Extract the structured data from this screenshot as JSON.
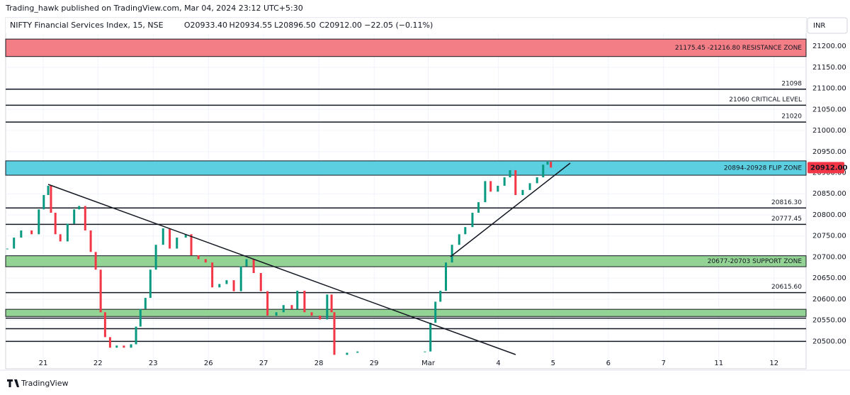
{
  "header": {
    "publisher": "Trading_hawk published on TradingView.com, Mar 04, 2024 23:12 UTC+5:30"
  },
  "footer": {
    "brand": "TradingView"
  },
  "chart_data": {
    "type": "candlestick",
    "symbol": "NIFTY Financial Services Index, 15, NSE",
    "ohlc": [
      "O20933.40",
      "H20934.55",
      "L20896.50",
      "C20912.00",
      "−22.05 (−0.11%)"
    ],
    "currency": "INR",
    "last_price_label": "20912.00",
    "up_color": "#089981",
    "down_color": "#f23645",
    "x": [
      -0.65,
      -0.53,
      -0.4,
      -0.21,
      -0.08,
      0.01,
      0.09,
      0.14,
      0.22,
      0.31,
      0.44,
      0.56,
      0.65,
      0.76,
      0.86,
      0.95,
      1.04,
      1.12,
      1.21,
      1.33,
      1.46,
      1.59,
      1.68,
      1.76,
      1.85,
      1.94,
      2.04,
      2.17,
      2.29,
      2.42,
      2.58,
      2.68,
      2.81,
      2.94,
      3.06,
      3.19,
      3.32,
      3.45,
      3.58,
      3.68,
      3.81,
      3.94,
      4.06,
      4.22,
      4.35,
      4.5,
      4.6,
      4.73,
      4.86,
      5.01,
      5.14,
      5.22,
      5.27,
      5.5,
      5.69,
      6.91,
      7.01,
      7.1,
      7.19,
      7.29,
      7.4,
      7.53,
      7.64,
      7.77,
      7.88,
      8.0,
      8.1,
      8.23,
      8.35,
      8.45,
      8.55,
      8.68,
      8.81,
      8.94,
      9.05,
      9.13,
      9.19
    ],
    "close": [
      20720,
      20746,
      20763,
      20754,
      20813,
      20847,
      20869,
      20805,
      20754,
      20737,
      20779,
      20813,
      20821,
      20763,
      20712,
      20670,
      20569,
      20510,
      20485,
      20490,
      20485,
      20493,
      20535,
      20577,
      20603,
      20670,
      20729,
      20768,
      20720,
      20746,
      20754,
      20704,
      20695,
      20687,
      20628,
      20636,
      20645,
      20619,
      20678,
      20695,
      20662,
      20619,
      20561,
      20569,
      20586,
      20577,
      20620,
      20569,
      20561,
      20552,
      20611,
      20569,
      20468,
      20473,
      20476,
      20476,
      20544,
      20594,
      20620,
      20687,
      20729,
      20754,
      20771,
      20805,
      20830,
      20880,
      20855,
      20869,
      20889,
      20906,
      20847,
      20859,
      20875,
      20889,
      20919,
      20926,
      20912
    ],
    "xlim": [
      -0.68,
      13.81
    ],
    "xticks": [
      {
        "value": 0,
        "label": "21"
      },
      {
        "value": 0.99,
        "label": "22"
      },
      {
        "value": 1.99,
        "label": "23"
      },
      {
        "value": 2.99,
        "label": "26"
      },
      {
        "value": 3.99,
        "label": "27"
      },
      {
        "value": 4.99,
        "label": "28"
      },
      {
        "value": 5.99,
        "label": "29"
      },
      {
        "value": 6.97,
        "label": "Mar"
      },
      {
        "value": 8.24,
        "label": "4"
      },
      {
        "value": 9.23,
        "label": "5"
      },
      {
        "value": 10.23,
        "label": "6"
      },
      {
        "value": 11.23,
        "label": "7"
      },
      {
        "value": 12.23,
        "label": "11"
      },
      {
        "value": 13.23,
        "label": "12"
      }
    ],
    "ylim": [
      20435,
      21217
    ],
    "yticks": [
      {
        "value": 20500,
        "label": "20500.00"
      },
      {
        "value": 20550,
        "label": "20550.00"
      },
      {
        "value": 20600,
        "label": "20600.00"
      },
      {
        "value": 20650,
        "label": "20650.00"
      },
      {
        "value": 20700,
        "label": "20700.00"
      },
      {
        "value": 20750,
        "label": "20750.00"
      },
      {
        "value": 20800,
        "label": "20800.00"
      },
      {
        "value": 20850,
        "label": "20850.00"
      },
      {
        "value": 20900,
        "label": "20900.00"
      },
      {
        "value": 20950,
        "label": "20950.00"
      },
      {
        "value": 21000,
        "label": "21000.00"
      },
      {
        "value": 21050,
        "label": "21050.00"
      },
      {
        "value": 21100,
        "label": "21100.00"
      },
      {
        "value": 21150,
        "label": "21150.00"
      },
      {
        "value": 21200,
        "label": "21200.00"
      }
    ],
    "grid": true,
    "zones": [
      {
        "low": 21175.45,
        "high": 21216.8,
        "label": "21175.45 -21216.80 RESISTANCE ZONE",
        "color": "#f47e86",
        "text_color": "#c2303d"
      },
      {
        "low": 20894,
        "high": 20928,
        "label": "20894-20928 FLIP ZONE",
        "color": "#5ccfe0",
        "text_color": "#1b7b8a"
      },
      {
        "low": 20677,
        "high": 20703,
        "label": "20677-20703 SUPPORT ZONE",
        "color": "#93d393",
        "text_color": "#2f7d32"
      },
      {
        "low": 20559,
        "high": 20576,
        "color": "#93d393"
      }
    ],
    "levels": [
      {
        "value": 21098,
        "label": "21098"
      },
      {
        "value": 21060,
        "label": "21060 CRITICAL LEVEL"
      },
      {
        "value": 21020,
        "label": "21020"
      },
      {
        "value": 20816.3,
        "label": "20816.30"
      },
      {
        "value": 20777.45,
        "label": "20777.45"
      },
      {
        "value": 20615.6,
        "label": "20615.60"
      },
      {
        "value": 20555
      },
      {
        "value": 20530
      },
      {
        "value": 20500
      }
    ]
  }
}
